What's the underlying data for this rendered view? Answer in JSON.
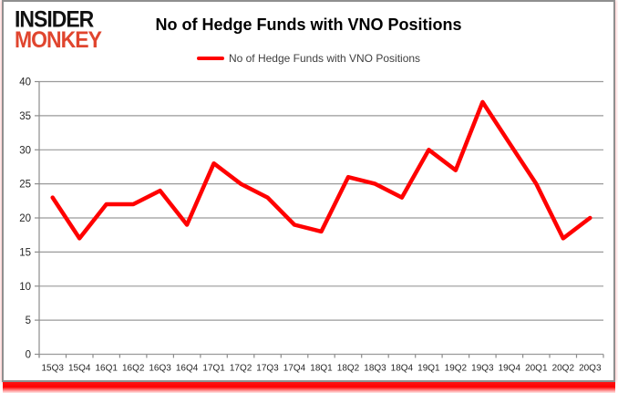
{
  "logo": {
    "line1": "INSIDER",
    "line2": "MONKEY"
  },
  "header": {
    "title": "No of Hedge Funds with VNO Positions"
  },
  "legend": {
    "label": "No of Hedge Funds with VNO Positions"
  },
  "colors": {
    "line": "#ff0000",
    "logo_accent": "#e0452e",
    "grid": "#9a9a9a",
    "axis": "#8c8c8c",
    "tick_text": "#262626",
    "bottom_bar": "#ff0000"
  },
  "chart_data": {
    "type": "line",
    "title": "No of Hedge Funds with VNO Positions",
    "categories": [
      "15Q3",
      "15Q4",
      "16Q1",
      "16Q2",
      "16Q3",
      "16Q4",
      "17Q1",
      "17Q2",
      "17Q3",
      "17Q4",
      "18Q1",
      "18Q2",
      "18Q3",
      "18Q4",
      "19Q1",
      "19Q2",
      "19Q3",
      "19Q4",
      "20Q1",
      "20Q2",
      "20Q3"
    ],
    "series": [
      {
        "name": "No of Hedge Funds with VNO Positions",
        "values": [
          23,
          17,
          22,
          22,
          24,
          19,
          28,
          25,
          23,
          19,
          18,
          26,
          25,
          23,
          30,
          27,
          37,
          31,
          25,
          17,
          20
        ]
      }
    ],
    "xlabel": "",
    "ylabel": "",
    "ylim": [
      0,
      40
    ],
    "ytick_step": 5,
    "grid": "horizontal",
    "legend_position": "top",
    "line_color": "#ff0000"
  }
}
